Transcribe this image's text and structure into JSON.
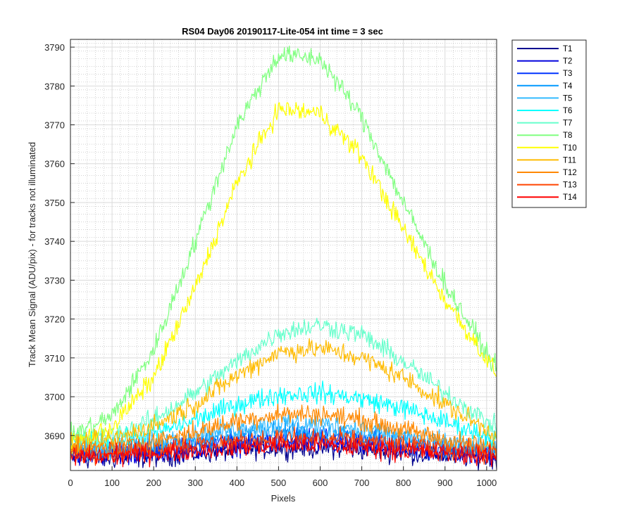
{
  "chart_data": {
    "type": "line",
    "title": "RS04 Day06 20190117-Lite-054 int time = 3 sec",
    "xlabel": "Pixels",
    "ylabel": "Track Mean Signal (ADU/pix) - for tracks not illuminated",
    "xlim": [
      0,
      1024
    ],
    "ylim": [
      3681,
      3792
    ],
    "x_ticks": [
      0,
      100,
      200,
      300,
      400,
      500,
      600,
      700,
      800,
      900,
      1000
    ],
    "y_ticks": [
      3690,
      3700,
      3710,
      3720,
      3730,
      3740,
      3750,
      3760,
      3770,
      3780,
      3790
    ],
    "grid": true,
    "minor_grid": true,
    "legend_position": "outside-right",
    "noise_amplitude": 1.6,
    "series": [
      {
        "name": "T1",
        "color": "#00008f",
        "x": [
          0,
          100,
          200,
          300,
          400,
          500,
          600,
          700,
          800,
          900,
          1024
        ],
        "y": [
          3684,
          3684,
          3684.5,
          3685.3,
          3686.2,
          3686.8,
          3686.8,
          3686.3,
          3685.5,
          3684.8,
          3684
        ]
      },
      {
        "name": "T2",
        "color": "#0000dd",
        "x": [
          0,
          100,
          200,
          300,
          400,
          500,
          600,
          700,
          800,
          900,
          1024
        ],
        "y": [
          3685,
          3685,
          3685.5,
          3686.3,
          3687.3,
          3688,
          3688,
          3687.3,
          3686.5,
          3685.6,
          3685
        ]
      },
      {
        "name": "T3",
        "color": "#0033ff",
        "x": [
          0,
          100,
          200,
          300,
          400,
          500,
          600,
          700,
          800,
          900,
          1024
        ],
        "y": [
          3685.5,
          3685.8,
          3686.5,
          3687.5,
          3688.6,
          3689.4,
          3689.4,
          3688.6,
          3687.6,
          3686.5,
          3685.5
        ]
      },
      {
        "name": "T4",
        "color": "#0099ff",
        "x": [
          0,
          100,
          200,
          300,
          400,
          500,
          600,
          700,
          800,
          900,
          1024
        ],
        "y": [
          3686,
          3686.3,
          3687.2,
          3688.5,
          3690,
          3691,
          3691,
          3690,
          3688.6,
          3687.2,
          3686
        ]
      },
      {
        "name": "T5",
        "color": "#33bbff",
        "x": [
          0,
          100,
          200,
          300,
          400,
          500,
          600,
          700,
          800,
          900,
          1024
        ],
        "y": [
          3686.5,
          3687,
          3688,
          3689.8,
          3691.8,
          3693,
          3693,
          3691.8,
          3690,
          3688.2,
          3686.5
        ]
      },
      {
        "name": "T6",
        "color": "#00ffff",
        "x": [
          0,
          100,
          200,
          300,
          400,
          500,
          600,
          700,
          800,
          900,
          1024
        ],
        "y": [
          3688,
          3688.5,
          3690.5,
          3694,
          3698,
          3700.5,
          3701,
          3699.5,
          3697,
          3693.5,
          3689
        ]
      },
      {
        "name": "T7",
        "color": "#66ffcc",
        "x": [
          0,
          100,
          200,
          300,
          400,
          500,
          600,
          700,
          800,
          900,
          1024
        ],
        "y": [
          3689,
          3690,
          3694,
          3701,
          3709,
          3716.5,
          3718.5,
          3716,
          3709,
          3701,
          3692
        ]
      },
      {
        "name": "T8",
        "color": "#80ff80",
        "x": [
          0,
          100,
          200,
          300,
          400,
          500,
          600,
          700,
          800,
          900,
          1024
        ],
        "y": [
          3690,
          3695,
          3712,
          3740,
          3770,
          3788,
          3787,
          3772,
          3750,
          3729,
          3707
        ]
      },
      {
        "name": "T10",
        "color": "#ffff00",
        "x": [
          0,
          100,
          200,
          300,
          400,
          500,
          600,
          700,
          800,
          900,
          1024
        ],
        "y": [
          3688,
          3692,
          3705,
          3728,
          3755,
          3774,
          3773,
          3762,
          3743,
          3725,
          3706
        ]
      },
      {
        "name": "T11",
        "color": "#ffbb00",
        "x": [
          0,
          100,
          200,
          300,
          400,
          500,
          600,
          700,
          800,
          900,
          1024
        ],
        "y": [
          3687.5,
          3689,
          3692.5,
          3698,
          3705.5,
          3711.5,
          3712.5,
          3710,
          3705,
          3698,
          3690
        ]
      },
      {
        "name": "T12",
        "color": "#ff8800",
        "x": [
          0,
          100,
          200,
          300,
          400,
          500,
          600,
          700,
          800,
          900,
          1024
        ],
        "y": [
          3686.5,
          3687,
          3688.5,
          3691,
          3693.8,
          3695.5,
          3695.5,
          3694,
          3691.5,
          3689,
          3686.5
        ]
      },
      {
        "name": "T13",
        "color": "#ff4400",
        "x": [
          0,
          100,
          200,
          300,
          400,
          500,
          600,
          700,
          800,
          900,
          1024
        ],
        "y": [
          3685.5,
          3685.8,
          3686.6,
          3687.6,
          3688.6,
          3689.2,
          3689.2,
          3688.6,
          3687.6,
          3686.6,
          3685.5
        ]
      },
      {
        "name": "T14",
        "color": "#ff0000",
        "x": [
          0,
          100,
          200,
          300,
          400,
          500,
          600,
          700,
          800,
          900,
          1024
        ],
        "y": [
          3684.5,
          3684.8,
          3685.4,
          3686.2,
          3687,
          3687.5,
          3687.5,
          3687,
          3686.2,
          3685.4,
          3684.5
        ]
      }
    ]
  }
}
